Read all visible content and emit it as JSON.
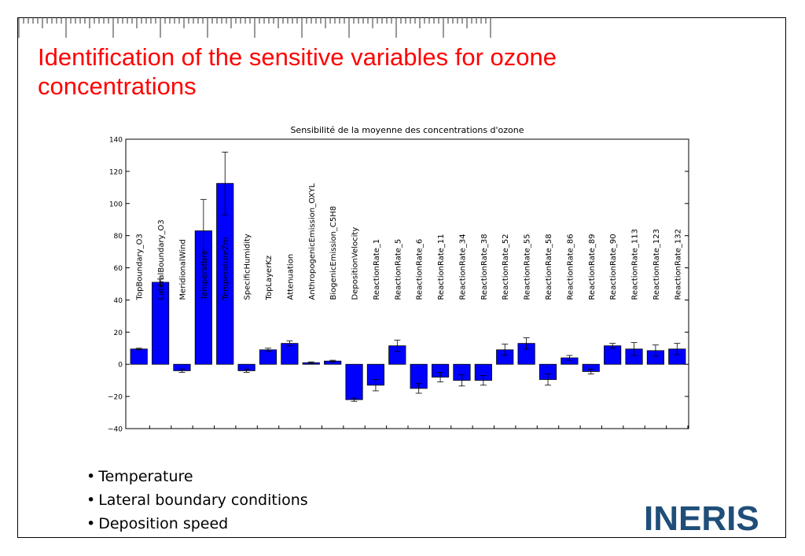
{
  "slide": {
    "title": "Identification of the sensitive variables for ozone concentrations",
    "bullets": [
      "Temperature",
      "Lateral boundary conditions",
      "Deposition speed"
    ],
    "logo_text": "INERIS",
    "colors": {
      "title": "#ff0000",
      "bar": "#0000ff",
      "logo": "#1f4e79"
    }
  },
  "chart_data": {
    "type": "bar",
    "title": "Sensibilité de la moyenne des concentrations d'ozone",
    "xlabel": "",
    "ylabel": "",
    "ylim": [
      -40,
      140
    ],
    "yticks": [
      -40,
      -20,
      0,
      20,
      40,
      60,
      80,
      100,
      120,
      140
    ],
    "ytick_labels": [
      "−40",
      "−20",
      "0",
      "20",
      "40",
      "60",
      "80",
      "100",
      "120",
      "140"
    ],
    "grid": false,
    "categories": [
      "TopBoundary_O3",
      "LateralBoundary_O3",
      "MeridionalWind",
      "Temperature",
      "TemperatureZm",
      "SpecificHumidity",
      "TopLayerKz",
      "Attenuation",
      "AnthropogenicEmission_OXYL",
      "BiogenicEmission_C5H8",
      "DepositionVelocity",
      "ReactionRate_1",
      "ReactionRate_5",
      "ReactionRate_6",
      "ReactionRate_11",
      "ReactionRate_34",
      "ReactionRate_38",
      "ReactionRate_52",
      "ReactionRate_55",
      "ReactionRate_58",
      "ReactionRate_86",
      "ReactionRate_89",
      "ReactionRate_90",
      "ReactionRate_113",
      "ReactionRate_123",
      "ReactionRate_132"
    ],
    "values": [
      9.5,
      51,
      -4,
      83,
      112.5,
      -4,
      9,
      13,
      1,
      2,
      -22,
      -13,
      11.5,
      -15,
      -8,
      -10,
      -10,
      9,
      13,
      -9.5,
      4,
      -4.5,
      11.5,
      9.5,
      8.5,
      9.5
    ],
    "errors": [
      0.5,
      2,
      1,
      19.5,
      19.5,
      1,
      1,
      1.5,
      0.5,
      0.5,
      1,
      3.5,
      3.5,
      3,
      3,
      3.5,
      3,
      3.5,
      3.5,
      3.5,
      1.5,
      1.5,
      1.5,
      4,
      3.5,
      3.5
    ],
    "color": "#0000ff"
  }
}
